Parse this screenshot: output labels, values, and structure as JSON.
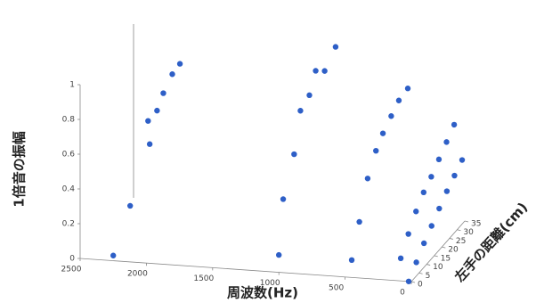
{
  "chart_data": {
    "type": "scatter3d",
    "y_label": "1倍音の振幅",
    "x_label": "周波数(Hz)",
    "depth_label": "左手の距離(cm)",
    "xlim": [
      0,
      2500
    ],
    "xticks": [
      2500,
      2000,
      1500,
      1000,
      500,
      0
    ],
    "depthlim": [
      0,
      35
    ],
    "depthticks": [
      0,
      5,
      10,
      15,
      20,
      25,
      30,
      35
    ],
    "ylim": [
      0,
      1
    ],
    "yticks": [
      0,
      0.2,
      0.4,
      0.6,
      0.8,
      1
    ],
    "series": [
      {
        "color": "#2e5fc7",
        "x": [
          2250,
          2180,
          2090,
          2160,
          2150,
          2160,
          2150,
          2150
        ],
        "depth": [
          0,
          5,
          10,
          15,
          20,
          25,
          30,
          35
        ],
        "values": [
          0.03,
          0.27,
          0.58,
          0.66,
          0.67,
          0.72,
          0.78,
          0.79
        ]
      },
      {
        "color": "#2e5fc7",
        "x": [
          1000,
          1025,
          1000,
          1010,
          1000,
          1010,
          1000,
          975
        ],
        "depth": [
          0,
          5,
          10,
          15,
          20,
          25,
          30,
          35
        ],
        "values": [
          0.1,
          0.37,
          0.58,
          0.78,
          0.82,
          0.91,
          0.86,
          0.95
        ]
      },
      {
        "color": "#2e5fc7",
        "x": [
          450,
          450,
          445,
          440,
          445,
          440,
          440,
          430
        ],
        "depth": [
          0,
          5,
          10,
          15,
          20,
          25,
          30,
          35
        ],
        "values": [
          0.1,
          0.27,
          0.47,
          0.58,
          0.63,
          0.68,
          0.72,
          0.74
        ]
      },
      {
        "color": "#2e5fc7",
        "x": [
          80,
          80,
          80,
          80,
          80,
          80,
          80,
          80
        ],
        "depth": [
          0,
          5,
          10,
          15,
          20,
          25,
          30,
          35
        ],
        "values": [
          0.13,
          0.22,
          0.3,
          0.36,
          0.4,
          0.45,
          0.5,
          0.55
        ]
      },
      {
        "color": "#2e5fc7",
        "x": [
          20,
          20,
          20,
          20,
          20,
          20,
          20,
          20
        ],
        "depth": [
          0,
          5,
          10,
          15,
          20,
          25,
          30,
          35
        ],
        "values": [
          0.0,
          0.06,
          0.12,
          0.17,
          0.22,
          0.27,
          0.31,
          0.35
        ]
      }
    ]
  }
}
